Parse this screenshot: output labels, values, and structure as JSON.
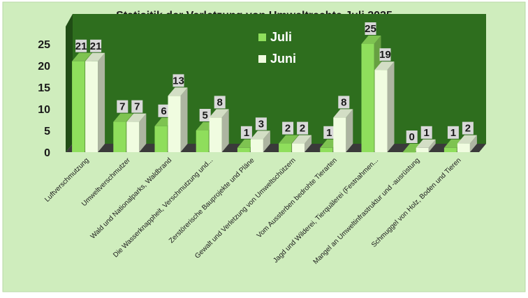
{
  "chart_data": {
    "type": "bar",
    "title": "Statisitik der Verletzung von Umweltrechte Juli 2025",
    "categories": [
      "Luftverschmutzung",
      "Umweltverschmutzer",
      "Wald und Nationalparks, Waldbrand",
      "Die Wasserknappheit, Verschmutzung und...",
      "Zerstörerische Bauprojekte und Pläne",
      "Gewalt und Verletzung von Umweltschützern",
      "Vom Aussterben bedrohte Tierarten",
      "Jagd und Wilderei, Tierquälerei (Festnahmen...",
      "Mangel an Umweltinfrastruktur und -ausrüstung",
      "Schmuggel von Holz, Boden und Tieren"
    ],
    "series": [
      {
        "name": "Juli",
        "values": [
          21,
          7,
          6,
          5,
          1,
          2,
          1,
          25,
          0,
          1
        ]
      },
      {
        "name": "Juni",
        "values": [
          21,
          7,
          13,
          8,
          3,
          2,
          8,
          19,
          1,
          2
        ]
      }
    ],
    "yticks": [
      "0",
      "5",
      "10",
      "15",
      "20",
      "25"
    ],
    "ylim": [
      0,
      30
    ],
    "grid": false,
    "legend_position": "top-center",
    "colors": {
      "page_background": "#cfedbd",
      "plot_wall": "#2e6e1e",
      "floor": "#3a3a3a",
      "juli": "#8fde5c",
      "juni": "#f0fce0",
      "label_box": "#d9d9d9",
      "text": "#1a1a1a",
      "legend_text": "#ffffff"
    }
  }
}
